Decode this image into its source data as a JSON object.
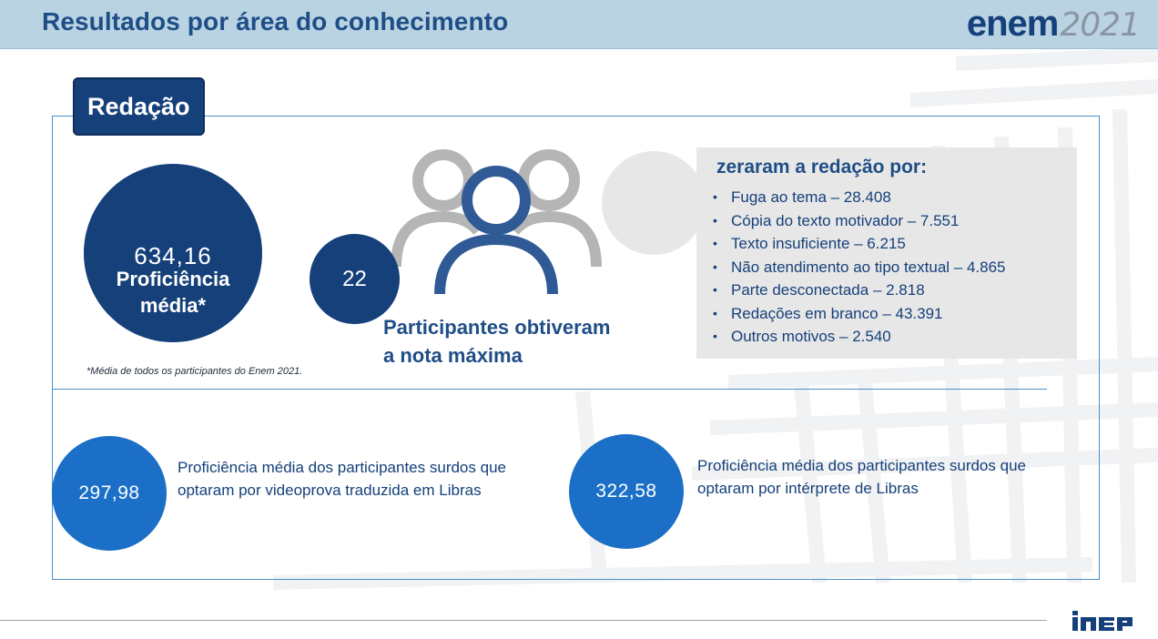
{
  "header": {
    "title": "Resultados por área do conhecimento",
    "logo_word": "enem",
    "logo_year": "2021"
  },
  "tab": {
    "label": "Redação"
  },
  "proficiency": {
    "value": "634,16",
    "label_line1": "Proficiência",
    "label_line2": "média*",
    "footnote": "*Média de todos os participantes do Enem 2021."
  },
  "max_score": {
    "count": "22",
    "label_line1": "Participantes obtiveram",
    "label_line2": "a nota máxima"
  },
  "zeroed": {
    "title": "zeraram a redação por:",
    "items": [
      "Fuga ao tema – 28.408",
      "Cópia do texto motivador – 7.551",
      "Texto insuficiente – 6.215",
      "Não atendimento ao tipo textual – 4.865",
      "Parte desconectada – 2.818",
      "Redações em branco – 43.391",
      "Outros motivos – 2.540"
    ]
  },
  "libras": {
    "videoprova": {
      "value": "297,98",
      "line1": "Proficiência média dos participantes surdos que",
      "line2": "optaram por videoprova traduzida em Libras"
    },
    "interprete": {
      "value": "322,58",
      "line1": "Proficiência média dos participantes surdos que",
      "line2": "optaram por intérprete de Libras"
    }
  },
  "footer": {
    "logo": "inep"
  },
  "colors": {
    "navy": "#15407a",
    "blue": "#1b6fc6",
    "header_bg": "#b9d3e3",
    "grey": "#e7e7e7",
    "person_grey": "#b5b5b5",
    "person_blue": "#2f5a96"
  },
  "icons": {
    "people": "people-group-icon",
    "inep": "inep-logo"
  }
}
